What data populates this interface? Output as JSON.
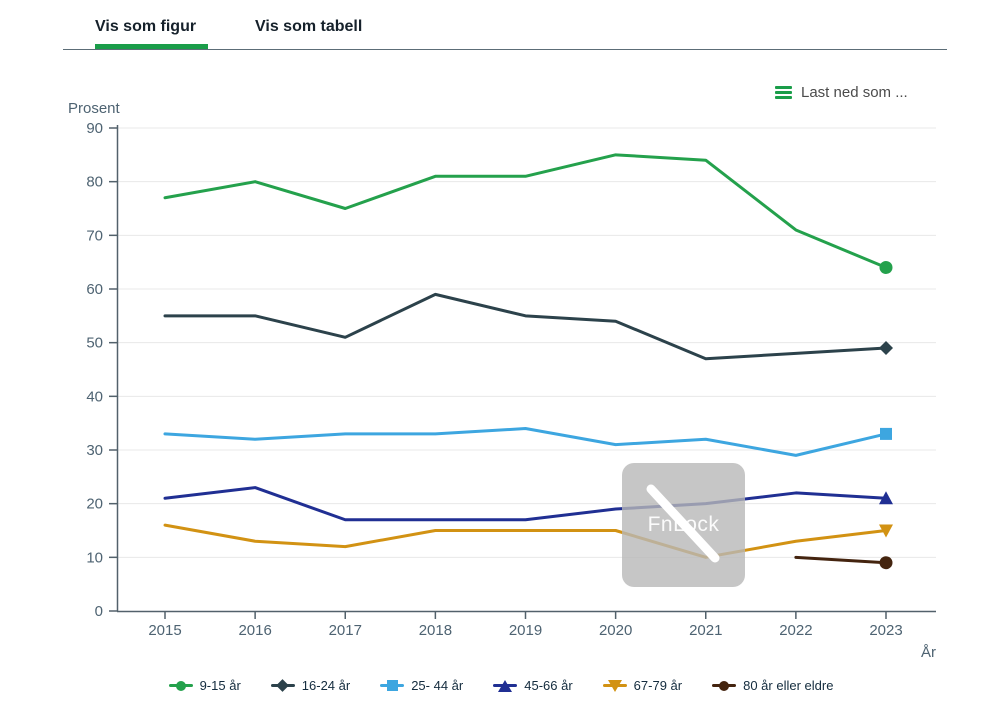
{
  "tabs": {
    "figure": "Vis som figur",
    "table": "Vis som tabell"
  },
  "download": {
    "label": "Last ned som ...",
    "icon": "menu-bars-icon",
    "icon_color": "#1a9d49"
  },
  "overlay": {
    "label": "FnLock",
    "icon": "fnlock-slash-icon"
  },
  "accent_color": "#1a9d49",
  "chart_data": {
    "type": "line",
    "title": "",
    "ylabel": "Prosent",
    "xlabel": "År",
    "ylim": [
      0,
      90
    ],
    "ytick_step": 10,
    "grid": true,
    "legend_position": "bottom",
    "x": [
      2015,
      2016,
      2017,
      2018,
      2019,
      2020,
      2021,
      2022,
      2023
    ],
    "series": [
      {
        "name": "9-15 år",
        "color": "#24a14c",
        "marker": "circle",
        "values": [
          77,
          80,
          75,
          81,
          81,
          85,
          84,
          71,
          64
        ]
      },
      {
        "name": "16-24 år",
        "color": "#2c424b",
        "marker": "diamond",
        "values": [
          55,
          55,
          51,
          59,
          55,
          54,
          47,
          48,
          49
        ]
      },
      {
        "name": "25- 44 år",
        "color": "#3da6e0",
        "marker": "square",
        "values": [
          33,
          32,
          33,
          33,
          34,
          31,
          32,
          29,
          33
        ]
      },
      {
        "name": "45-66 år",
        "color": "#202f93",
        "marker": "triangle-up",
        "values": [
          21,
          23,
          17,
          17,
          17,
          19,
          20,
          22,
          21
        ]
      },
      {
        "name": "67-79 år",
        "color": "#d29213",
        "marker": "triangle-down",
        "values": [
          16,
          13,
          12,
          15,
          15,
          15,
          10,
          13,
          15
        ]
      },
      {
        "name": "80 år eller eldre",
        "color": "#44240f",
        "marker": "circle",
        "values": [
          null,
          null,
          null,
          null,
          null,
          null,
          null,
          10,
          9
        ]
      }
    ],
    "axis_color": "#52616b",
    "tick_label_color": "#4e6372",
    "gridline_color": "#e8e8e8"
  }
}
